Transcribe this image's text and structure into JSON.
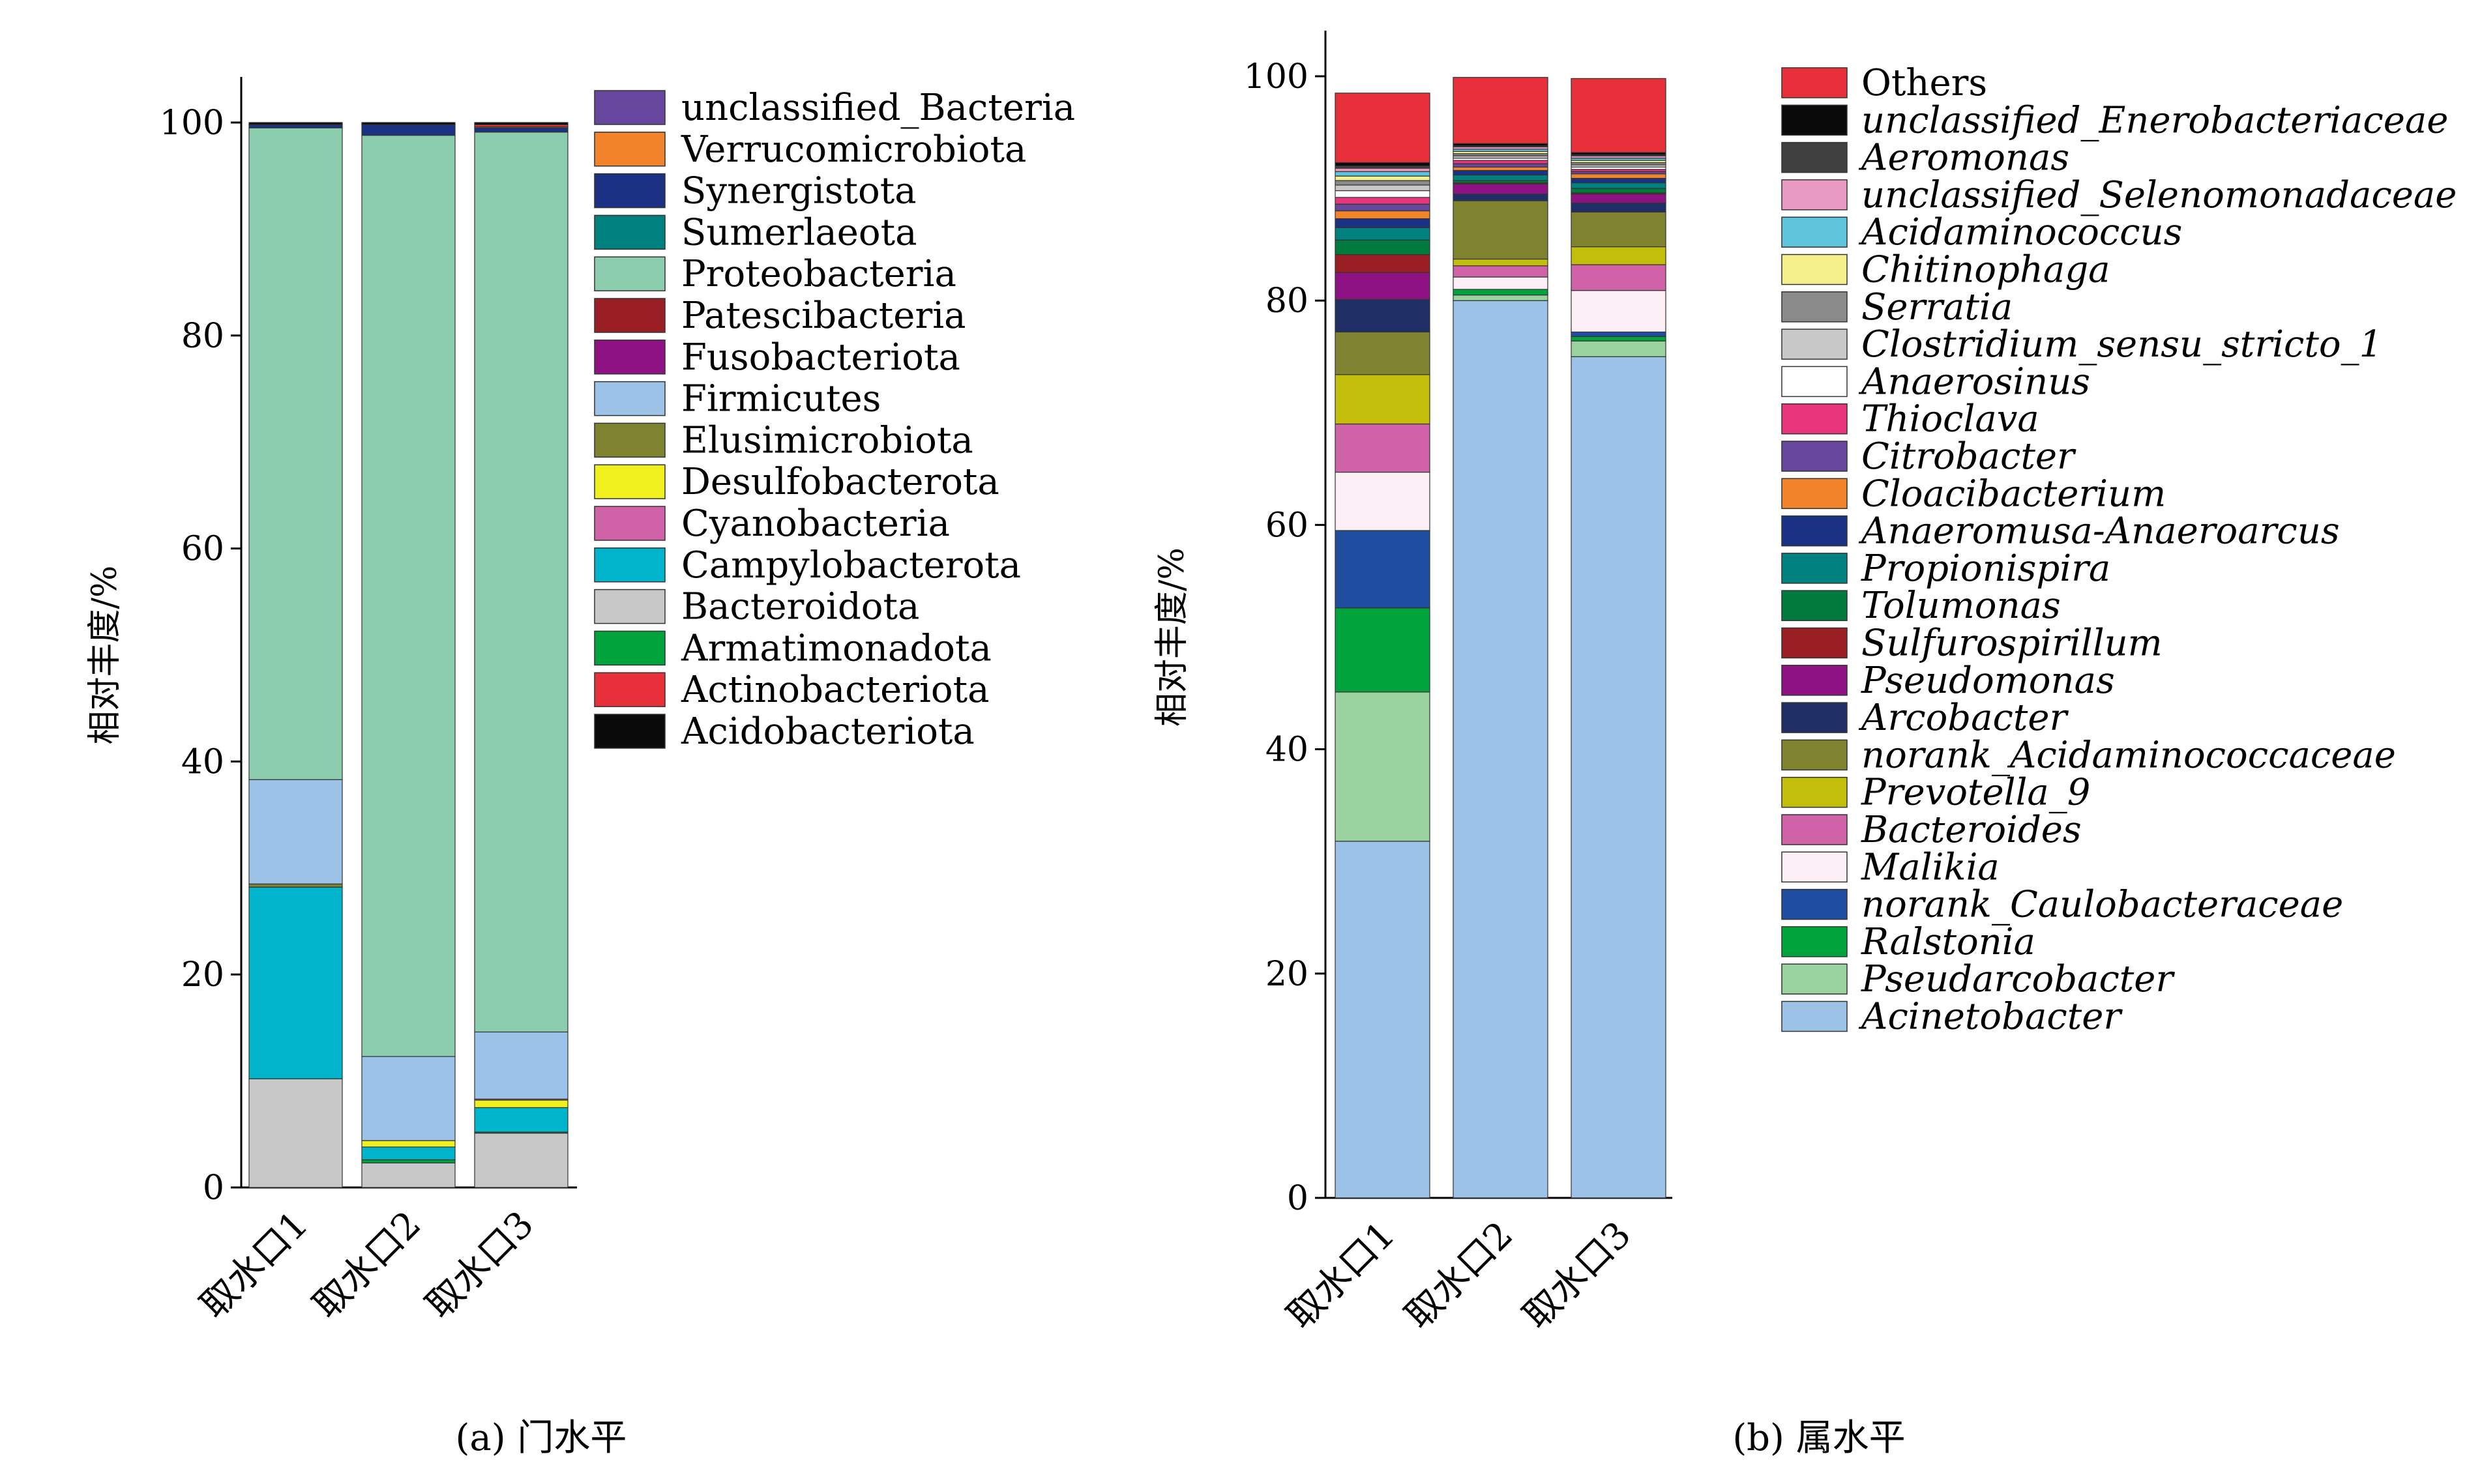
{
  "charts": [
    {
      "caption": "(a) 门水平",
      "ylabel": "相对丰度/%",
      "categories": [
        "取水口1",
        "取水口2",
        "取水口3"
      ],
      "yticks": [
        "0",
        "20",
        "40",
        "60",
        "80",
        "100"
      ],
      "legend_italic": false
    },
    {
      "caption": "(b) 属水平",
      "ylabel": "相对丰度/%",
      "categories": [
        "取水口1",
        "取水口2",
        "取水口3"
      ],
      "yticks": [
        "0",
        "20",
        "40",
        "60",
        "80",
        "100"
      ],
      "legend_italic": true
    }
  ],
  "chart_data": [
    {
      "type": "bar",
      "stacked": true,
      "title": "(a) 门水平",
      "ylabel": "相对丰度/%",
      "ylim": [
        0,
        100
      ],
      "categories": [
        "取水口1",
        "取水口2",
        "取水口3"
      ],
      "series": [
        {
          "name": "Bacteroidota",
          "color": "#c8c8c8",
          "values": [
            10.2,
            2.3,
            5.1
          ]
        },
        {
          "name": "Armatimonadota",
          "color": "#00a33c",
          "values": [
            0.0,
            0.3,
            0.1
          ]
        },
        {
          "name": "Campylobacterota",
          "color": "#00b4cc",
          "values": [
            18.0,
            1.2,
            2.3
          ]
        },
        {
          "name": "Desulfobacterota",
          "color": "#f0f01e",
          "values": [
            0.0,
            0.6,
            0.7
          ]
        },
        {
          "name": "Cyanobacteria",
          "color": "#d062a8",
          "values": [
            0.0,
            0.0,
            0.1
          ]
        },
        {
          "name": "Elusimicrobiota",
          "color": "#7f832f",
          "values": [
            0.3,
            0.0,
            0.0
          ]
        },
        {
          "name": "Firmicutes",
          "color": "#9cc2e8",
          "values": [
            9.8,
            7.9,
            6.3
          ]
        },
        {
          "name": "Fusobacteriota",
          "color": "#8e1283",
          "values": [
            0.0,
            0.0,
            0.0
          ]
        },
        {
          "name": "Patescibacteria",
          "color": "#9a1f24",
          "values": [
            0.0,
            0.0,
            0.0
          ]
        },
        {
          "name": "Proteobacteria",
          "color": "#8ccdad",
          "values": [
            61.2,
            86.5,
            84.5
          ]
        },
        {
          "name": "Sumerlaeota",
          "color": "#00807f",
          "values": [
            0.0,
            0.0,
            0.0
          ]
        },
        {
          "name": "Synergistota",
          "color": "#1b3184",
          "values": [
            0.3,
            1.0,
            0.4
          ]
        },
        {
          "name": "Verrucomicrobiota",
          "color": "#f2832b",
          "values": [
            0.0,
            0.0,
            0.1
          ]
        },
        {
          "name": "unclassified_Bacteria",
          "color": "#67469d",
          "values": [
            0.0,
            0.0,
            0.0
          ]
        },
        {
          "name": "Actinobacteriota",
          "color": "#e8303a",
          "values": [
            0.0,
            0.0,
            0.2
          ]
        },
        {
          "name": "Acidobacteriota",
          "color": "#0a0a0a",
          "values": [
            0.2,
            0.2,
            0.2
          ]
        }
      ],
      "legend_order": [
        "unclassified_Bacteria",
        "Verrucomicrobiota",
        "Synergistota",
        "Sumerlaeota",
        "Proteobacteria",
        "Patescibacteria",
        "Fusobacteriota",
        "Firmicutes",
        "Elusimicrobiota",
        "Desulfobacterota",
        "Cyanobacteria",
        "Campylobacterota",
        "Bacteroidota",
        "Armatimonadota",
        "Actinobacteriota",
        "Acidobacteriota"
      ]
    },
    {
      "type": "bar",
      "stacked": true,
      "title": "(b) 属水平",
      "ylabel": "相对丰度/%",
      "ylim": [
        0,
        100
      ],
      "categories": [
        "取水口1",
        "取水口2",
        "取水口3"
      ],
      "series": [
        {
          "name": "Acinetobacter",
          "color": "#9cc2e8",
          "values": [
            31.8,
            80.0,
            75.0
          ]
        },
        {
          "name": "Pseudarcobacter",
          "color": "#9ad3a0",
          "values": [
            13.3,
            0.5,
            1.4
          ]
        },
        {
          "name": "Ralstonia",
          "color": "#00a33c",
          "values": [
            7.5,
            0.5,
            0.4
          ]
        },
        {
          "name": "norank_Caulobacteraceae",
          "color": "#1f4ea1",
          "values": [
            6.9,
            0.0,
            0.4
          ]
        },
        {
          "name": "Malikia",
          "color": "#fbeef4",
          "values": [
            5.2,
            1.1,
            3.7
          ]
        },
        {
          "name": "Bacteroides",
          "color": "#d062a8",
          "values": [
            4.3,
            1.0,
            2.3
          ]
        },
        {
          "name": "Prevotella_9",
          "color": "#c3be0c",
          "values": [
            4.4,
            0.6,
            1.6
          ]
        },
        {
          "name": "norank_Acidaminococcaceae",
          "color": "#7f832f",
          "values": [
            3.8,
            5.2,
            3.1
          ]
        },
        {
          "name": "Arcobacter",
          "color": "#1f2f66",
          "values": [
            2.9,
            0.6,
            0.8
          ]
        },
        {
          "name": "Pseudomonas",
          "color": "#8e1283",
          "values": [
            2.4,
            0.9,
            0.8
          ]
        },
        {
          "name": "Sulfurospirillum",
          "color": "#9a1f24",
          "values": [
            1.6,
            0.1,
            0.1
          ]
        },
        {
          "name": "Tolumonas",
          "color": "#007a3d",
          "values": [
            1.3,
            0.2,
            0.4
          ]
        },
        {
          "name": "Propionispira",
          "color": "#00807f",
          "values": [
            1.1,
            0.5,
            0.5
          ]
        },
        {
          "name": "Anaeromusa-Anaeroarcus",
          "color": "#1b3184",
          "values": [
            0.8,
            0.4,
            0.4
          ]
        },
        {
          "name": "Cloacibacterium",
          "color": "#f2832b",
          "values": [
            0.7,
            0.3,
            0.4
          ]
        },
        {
          "name": "Citrobacter",
          "color": "#67469d",
          "values": [
            0.6,
            0.3,
            0.2
          ]
        },
        {
          "name": "Thioclava",
          "color": "#e7347b",
          "values": [
            0.6,
            0.3,
            0.2
          ]
        },
        {
          "name": "Anaerosinus",
          "color": "#ffffff",
          "values": [
            0.6,
            0.2,
            0.2
          ]
        },
        {
          "name": "Clostridium_sensu_stricto_1",
          "color": "#c8c8c8",
          "values": [
            0.5,
            0.2,
            0.2
          ]
        },
        {
          "name": "Serratia",
          "color": "#8a8a8a",
          "values": [
            0.4,
            0.2,
            0.2
          ]
        },
        {
          "name": "Chitinophaga",
          "color": "#f5f08c",
          "values": [
            0.4,
            0.2,
            0.2
          ]
        },
        {
          "name": "Acidaminococcus",
          "color": "#5fc3dc",
          "values": [
            0.4,
            0.2,
            0.2
          ]
        },
        {
          "name": "unclassified_Selenomonadaceae",
          "color": "#e89ac2",
          "values": [
            0.3,
            0.2,
            0.2
          ]
        },
        {
          "name": "Aeromonas",
          "color": "#404040",
          "values": [
            0.2,
            0.1,
            0.1
          ]
        },
        {
          "name": "unclassified_Enerobacteriaceae",
          "color": "#0a0a0a",
          "values": [
            0.3,
            0.2,
            0.2
          ]
        },
        {
          "name": "Others",
          "color": "#e8303a",
          "values": [
            6.2,
            5.9,
            6.6
          ]
        }
      ],
      "legend_order": [
        "Others",
        "unclassified_Enerobacteriaceae",
        "Aeromonas",
        "unclassified_Selenomonadaceae",
        "Acidaminococcus",
        "Chitinophaga",
        "Serratia",
        "Clostridium_sensu_stricto_1",
        "Anaerosinus",
        "Thioclava",
        "Citrobacter",
        "Cloacibacterium",
        "Anaeromusa-Anaeroarcus",
        "Propionispira",
        "Tolumonas",
        "Sulfurospirillum",
        "Pseudomonas",
        "Arcobacter",
        "norank_Acidaminococcaceae",
        "Prevotella_9",
        "Bacteroides",
        "Malikia",
        "norank_Caulobacteraceae",
        "Ralstonia",
        "Pseudarcobacter",
        "Acinetobacter"
      ]
    }
  ]
}
